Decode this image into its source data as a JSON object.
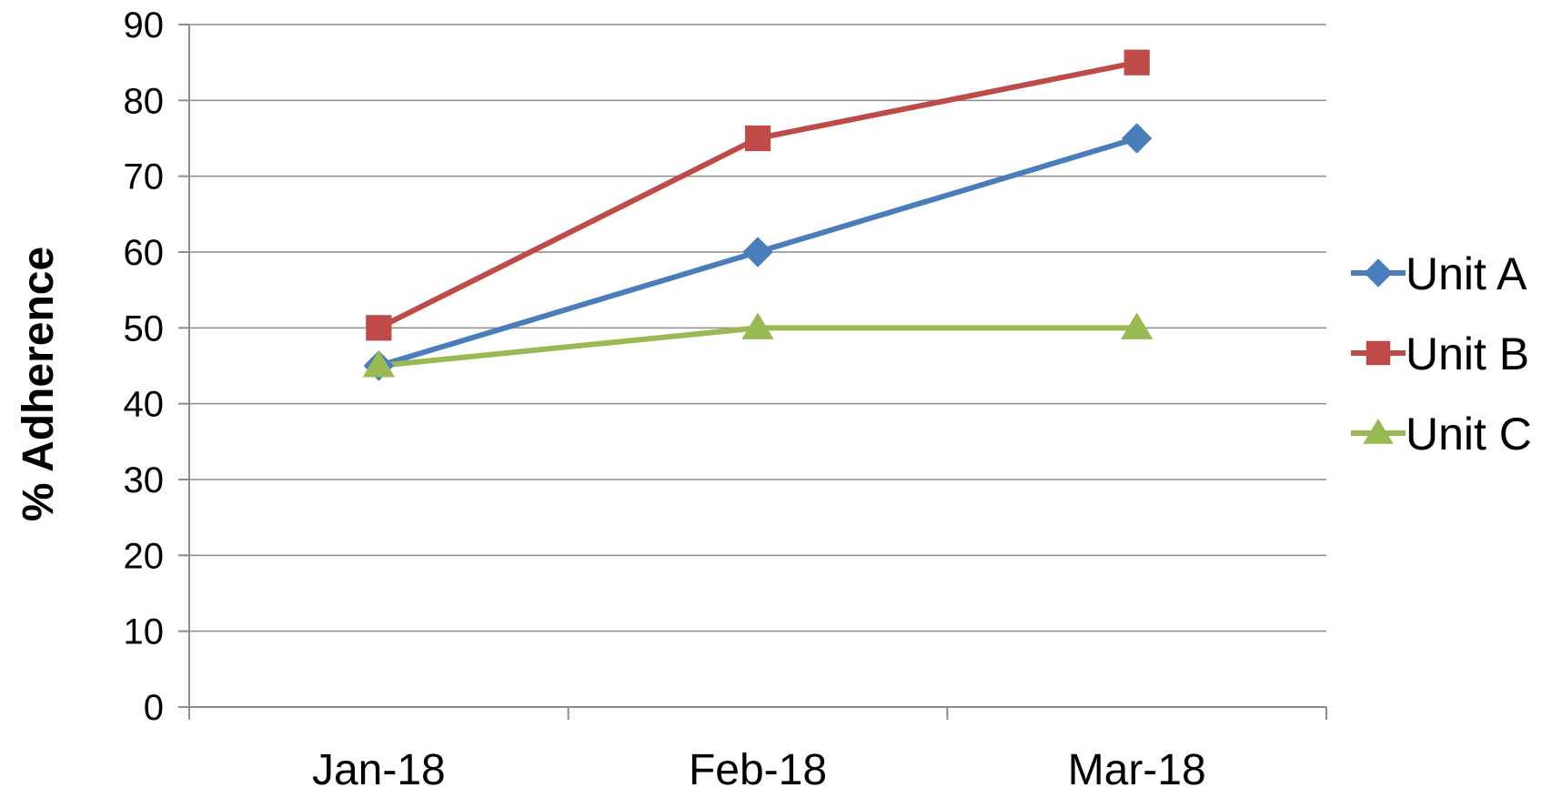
{
  "chart_data": {
    "type": "line",
    "title": "",
    "xlabel": "",
    "ylabel": "%   Adherence",
    "categories": [
      "Jan-18",
      "Feb-18",
      "Mar-18"
    ],
    "ylim": [
      0,
      90
    ],
    "yticks": [
      0,
      10,
      20,
      30,
      40,
      50,
      60,
      70,
      80,
      90
    ],
    "grid": true,
    "legend_position": "right",
    "series": [
      {
        "name": "Unit A",
        "values": [
          45,
          60,
          75
        ],
        "color": "#4a7ebb",
        "marker": "diamond"
      },
      {
        "name": "Unit B",
        "values": [
          50,
          75,
          85
        ],
        "color": "#be4b48",
        "marker": "square"
      },
      {
        "name": "Unit C",
        "values": [
          45,
          50,
          50
        ],
        "color": "#98b954",
        "marker": "triangle"
      }
    ]
  }
}
